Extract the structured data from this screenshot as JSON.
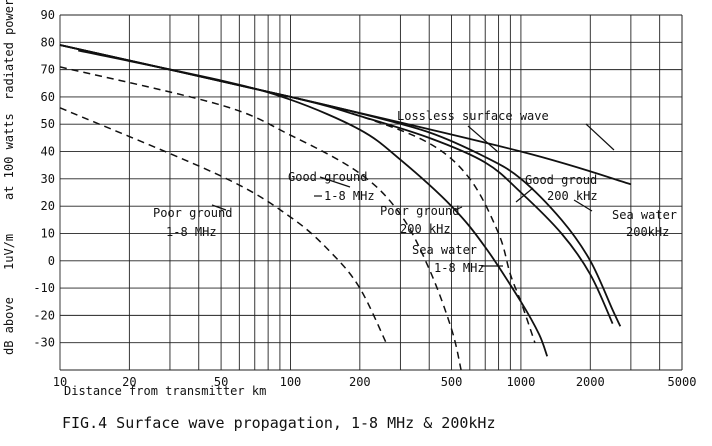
{
  "chart_data": {
    "type": "line",
    "x_scale": "log",
    "xlim": [
      10,
      5000
    ],
    "ylim": [
      -40,
      90
    ],
    "grid": true,
    "xlabel": "Distance from transmitter km",
    "ylabel": "dB above 1uV/m at 100 watts radiated power",
    "title": "FIG.4 Surface wave propagation, 1-8 MHz & 200kHz",
    "x_ticks": [
      "10",
      "20",
      "50",
      "100",
      "200",
      "500",
      "1000",
      "2000",
      "5000"
    ],
    "y_ticks": [
      "90",
      "80",
      "70",
      "60",
      "50",
      "40",
      "30",
      "20",
      "10",
      "0",
      "-10",
      "-20",
      "-30"
    ],
    "series": [
      {
        "name": "Lossless surface wave",
        "style": "solid",
        "points": [
          [
            10,
            79
          ],
          [
            100,
            60
          ],
          [
            1000,
            40
          ],
          [
            3000,
            28
          ]
        ]
      },
      {
        "name": "Good groud 200 kHz",
        "style": "solid",
        "points": [
          [
            10,
            79
          ],
          [
            100,
            60
          ],
          [
            200,
            53
          ],
          [
            400,
            45
          ],
          [
            700,
            36
          ],
          [
            1000,
            25
          ],
          [
            1500,
            10
          ],
          [
            2000,
            -5
          ],
          [
            2500,
            -23
          ]
        ]
      },
      {
        "name": "Sea water 200 kHz",
        "style": "solid",
        "points": [
          [
            10,
            79
          ],
          [
            100,
            60
          ],
          [
            200,
            54
          ],
          [
            400,
            47
          ],
          [
            700,
            38
          ],
          [
            1000,
            30
          ],
          [
            1500,
            15
          ],
          [
            2000,
            0
          ],
          [
            2500,
            -18
          ],
          [
            2700,
            -24
          ]
        ]
      },
      {
        "name": "Poor ground 200 kHz",
        "style": "solid",
        "points": [
          [
            12,
            77
          ],
          [
            50,
            66
          ],
          [
            100,
            59
          ],
          [
            200,
            48
          ],
          [
            300,
            37
          ],
          [
            500,
            20
          ],
          [
            700,
            5
          ],
          [
            1000,
            -15
          ],
          [
            1200,
            -27
          ],
          [
            1300,
            -35
          ]
        ]
      },
      {
        "name": "Sea water 1-8 MHz",
        "style": "dashed",
        "points": [
          [
            10,
            79
          ],
          [
            100,
            60
          ],
          [
            200,
            53
          ],
          [
            400,
            43
          ],
          [
            600,
            30
          ],
          [
            800,
            10
          ],
          [
            900,
            -5
          ],
          [
            1000,
            -15
          ],
          [
            1150,
            -30
          ]
        ]
      },
      {
        "name": "Good ground 1-8 MHz",
        "style": "dashed",
        "points": [
          [
            10,
            71
          ],
          [
            50,
            57
          ],
          [
            100,
            46
          ],
          [
            200,
            32
          ],
          [
            300,
            17
          ],
          [
            400,
            -3
          ],
          [
            500,
            -25
          ],
          [
            550,
            -40
          ]
        ]
      },
      {
        "name": "Poor ground 1-8 MHz",
        "style": "dashed",
        "points": [
          [
            10,
            56
          ],
          [
            50,
            31
          ],
          [
            100,
            16
          ],
          [
            150,
            3
          ],
          [
            200,
            -10
          ],
          [
            260,
            -30
          ]
        ]
      }
    ],
    "annotations": {
      "lossless": "Lossless surface wave",
      "good_ground_mf_l1": "Good ground",
      "good_ground_mf_l2": "1-8 MHz",
      "good_ground_lf_l1": "Good groud",
      "good_ground_lf_l2": "200 kHz",
      "poor_ground_mf_l1": "Poor ground",
      "poor_ground_mf_l2": "1-8 MHz",
      "poor_ground_lf_l1": "Poor ground",
      "poor_ground_lf_l2": "200 kHz",
      "sea_water_lf_l1": "Sea water",
      "sea_water_lf_l2": "200kHz",
      "sea_water_mf_l1": "Sea water",
      "sea_water_mf_l2": "1-8 MHz"
    },
    "ylabel_parts": [
      "dB above",
      "1uV/m",
      "at 100 watts",
      "radiated power"
    ]
  }
}
